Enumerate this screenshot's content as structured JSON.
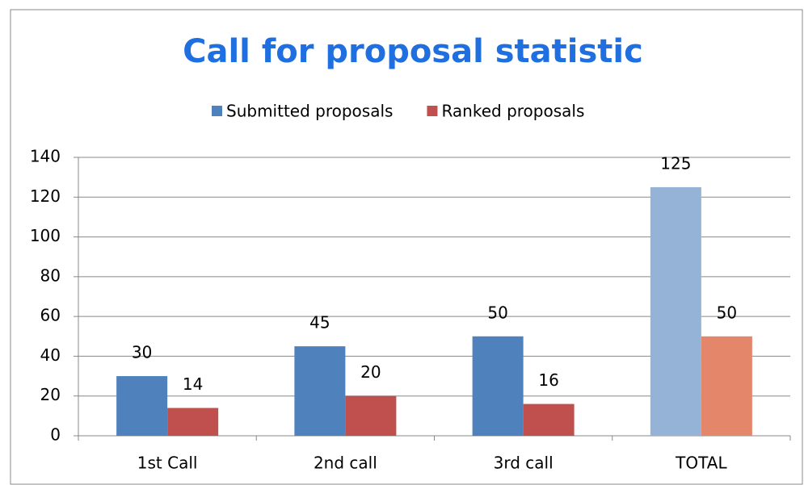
{
  "chart_data": {
    "type": "bar",
    "title": "Call for proposal statistic",
    "categories": [
      "1st Call",
      "2nd call",
      "3rd call",
      "TOTAL"
    ],
    "series": [
      {
        "name": "Submitted proposals",
        "color": "#4f81bd",
        "colors": [
          "#4f81bd",
          "#4f81bd",
          "#4f81bd",
          "#95b3d7"
        ],
        "values": [
          30,
          45,
          50,
          125
        ]
      },
      {
        "name": "Ranked proposals",
        "color": "#c0504d",
        "colors": [
          "#c0504d",
          "#c0504d",
          "#c0504d",
          "#e3866a"
        ],
        "values": [
          14,
          20,
          16,
          50
        ]
      }
    ],
    "ylim": [
      0,
      140
    ],
    "yticks": [
      0,
      20,
      40,
      60,
      80,
      100,
      120,
      140
    ],
    "grid": true,
    "legend": "top"
  }
}
